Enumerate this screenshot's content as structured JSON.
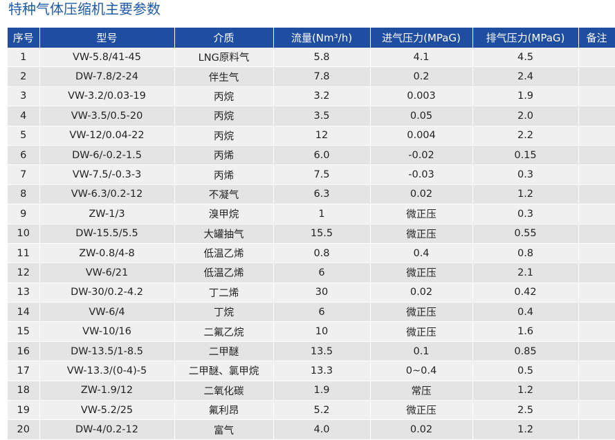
{
  "title": "特种气体压缩机主要参数",
  "headers": [
    "序号",
    "型号",
    "介质",
    "流量(Nm³/h)",
    "进气压力(MPaG)",
    "排气压力(MPaG)",
    "备注"
  ],
  "rows": [
    [
      "1",
      "VW-5.8/41-45",
      "LNG原料气",
      "5.8",
      "4.1",
      "4.5",
      ""
    ],
    [
      "2",
      "DW-7.8/2-24",
      "伴生气",
      "7.8",
      "0.2",
      "2.4",
      ""
    ],
    [
      "3",
      "VW-3.2/0.03-19",
      "丙烷",
      "3.2",
      "0.003",
      "1.9",
      ""
    ],
    [
      "4",
      "VW-3.5/0.5-20",
      "丙烷",
      "3.5",
      "0.05",
      "2.0",
      ""
    ],
    [
      "5",
      "VW-12/0.04-22",
      "丙烷",
      "12",
      "0.004",
      "2.2",
      ""
    ],
    [
      "6",
      "DW-6/-0.2-1.5",
      "丙烯",
      "6.0",
      "-0.02",
      "0.15",
      ""
    ],
    [
      "7",
      "VW-7.5/-0.3-3",
      "丙烯",
      "7.5",
      "-0.03",
      "0.3",
      ""
    ],
    [
      "8",
      "VW-6.3/0.2-12",
      "不凝气",
      "6.3",
      "0.02",
      "1.2",
      ""
    ],
    [
      "9",
      "ZW-1/3",
      "溴甲烷",
      "1",
      "微正压",
      "0.3",
      ""
    ],
    [
      "10",
      "DW-15.5/5.5",
      "大罐抽气",
      "15.5",
      "微正压",
      "0.55",
      ""
    ],
    [
      "11",
      "ZW-0.8/4-8",
      "低温乙烯",
      "0.8",
      "0.4",
      "0.8",
      ""
    ],
    [
      "12",
      "VW-6/21",
      "低温乙烯",
      "6",
      "微正压",
      "2.1",
      ""
    ],
    [
      "13",
      "DW-30/0.2-4.2",
      "丁二烯",
      "30",
      "0.02",
      "0.42",
      ""
    ],
    [
      "14",
      "VW-6/4",
      "丁烷",
      "6",
      "微正压",
      "0.4",
      ""
    ],
    [
      "15",
      "VW-10/16",
      "二氟乙烷",
      "10",
      "微正压",
      "1.6",
      ""
    ],
    [
      "16",
      "DW-13.5/1-8.5",
      "二甲醚",
      "13.5",
      "0.1",
      "0.85",
      ""
    ],
    [
      "17",
      "VW-13.3/(0-4)-5",
      "二甲醚、氯甲烷",
      "13.3",
      "0~0.4",
      "0.5",
      ""
    ],
    [
      "18",
      "ZW-1.9/12",
      "二氧化碳",
      "1.9",
      "常压",
      "1.2",
      ""
    ],
    [
      "19",
      "VW-5.2/25",
      "氟利昂",
      "5.2",
      "微正压",
      "2.5",
      ""
    ],
    [
      "20",
      "DW-4/0.2-12",
      "富气",
      "4.0",
      "0.02",
      "1.2",
      ""
    ]
  ],
  "colors": {
    "title": "#1f5aa6",
    "header_bg": "#1f4ea0",
    "row_odd": "#f0f0f0",
    "row_even": "#e4e4e4"
  }
}
